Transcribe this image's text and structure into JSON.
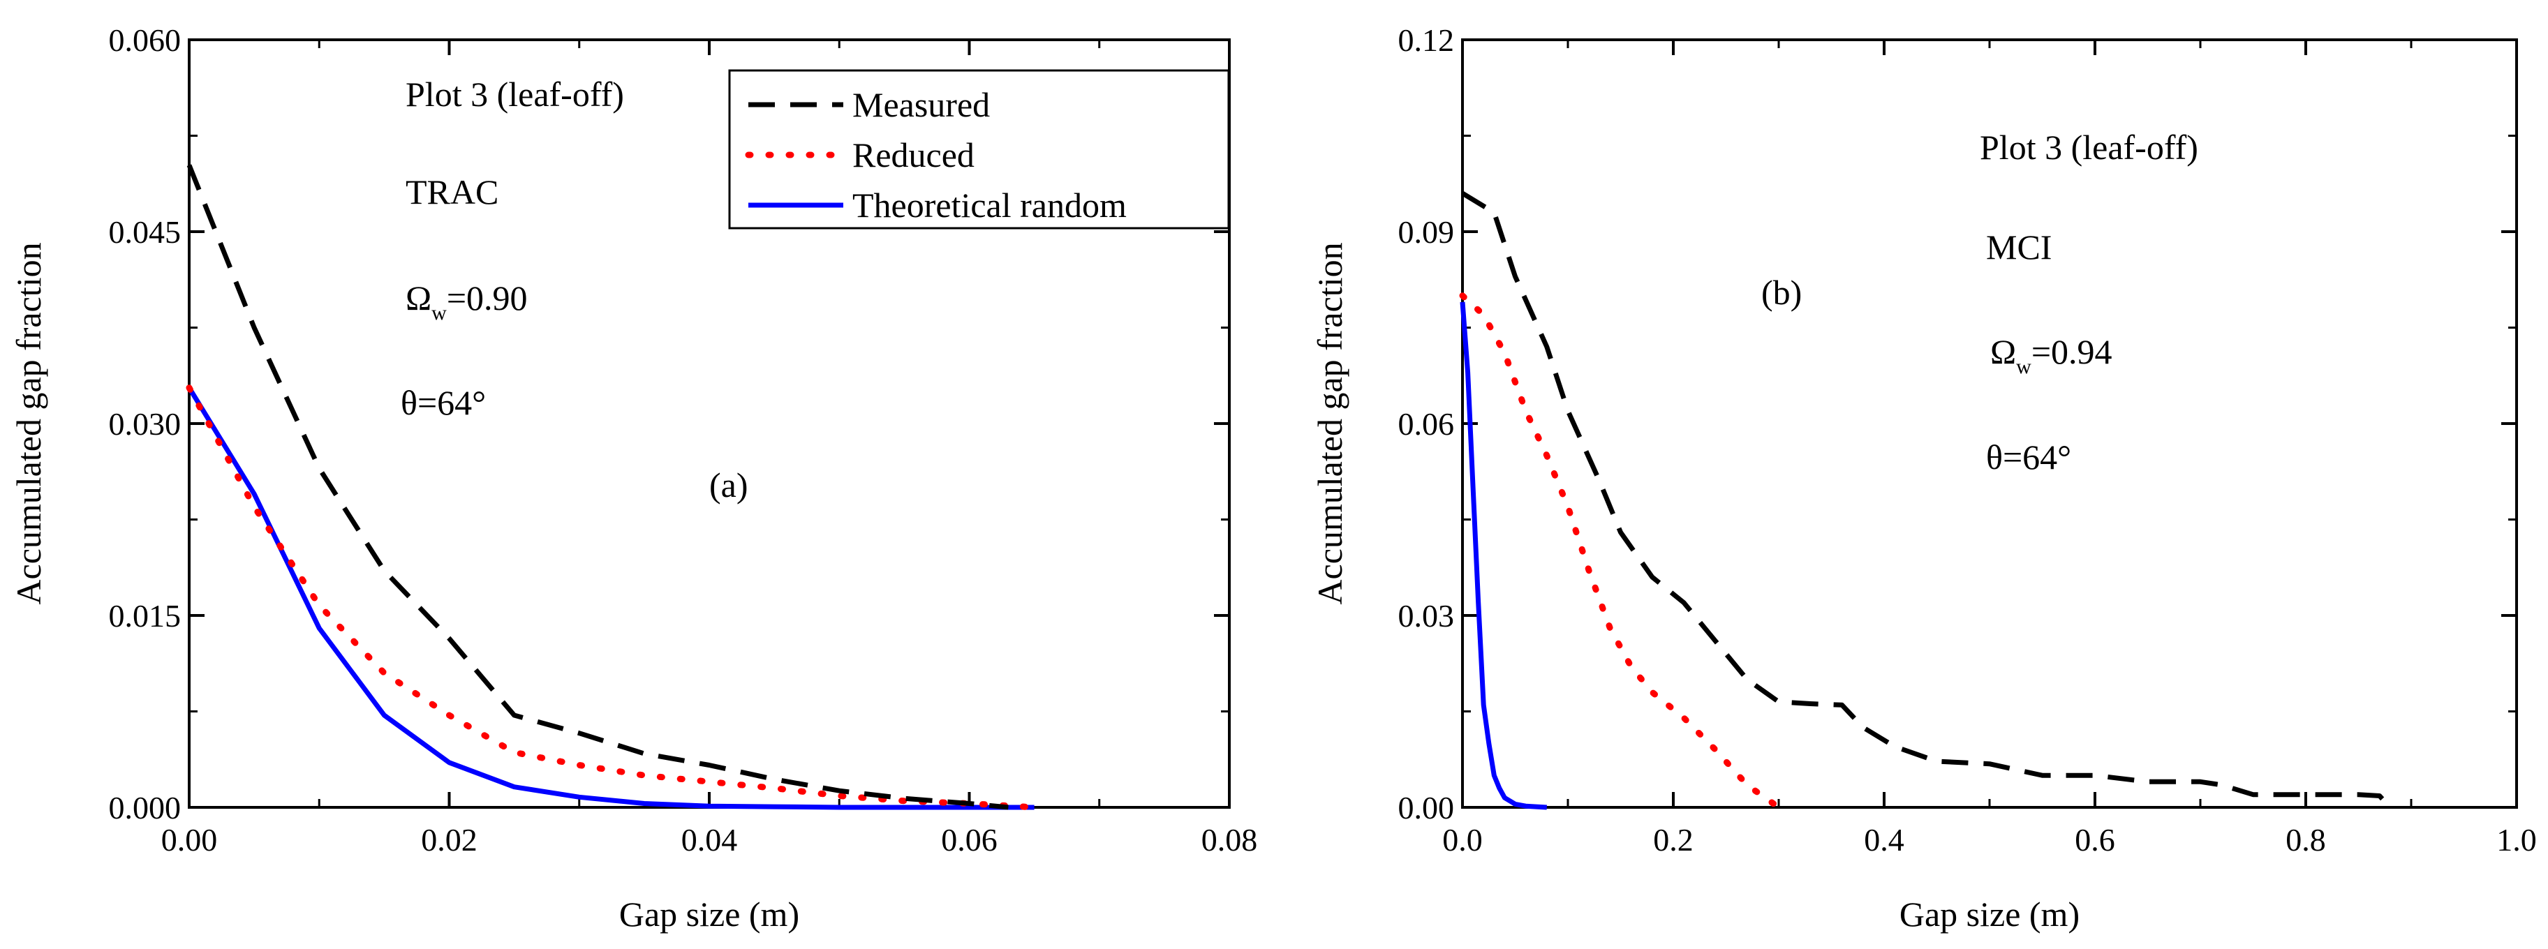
{
  "chart_data": [
    {
      "type": "line",
      "panel": "a",
      "xlabel": "Gap size (m)",
      "ylabel": "Accumulated gap fraction",
      "xlim": [
        0,
        0.08
      ],
      "ylim": [
        0,
        0.06
      ],
      "xticks": [
        "0.00",
        "0.02",
        "0.04",
        "0.06",
        "0.08"
      ],
      "yticks": [
        "0.000",
        "0.015",
        "0.030",
        "0.045",
        "0.060"
      ],
      "annotations": {
        "plot": "Plot 3 (leaf-off)",
        "method": "TRAC",
        "omega_symbol": "Ω",
        "omega_sub": "w",
        "omega_value": "=0.90",
        "theta": "θ=64°",
        "label": "(a)"
      },
      "legend": {
        "position": "top-right",
        "entries": [
          "Measured",
          "Reduced",
          "Theoretical random"
        ]
      },
      "series": [
        {
          "name": "Measured",
          "color": "#000000",
          "style": "dashed",
          "x": [
            0,
            0.005,
            0.01,
            0.015,
            0.02,
            0.025,
            0.03,
            0.035,
            0.04,
            0.045,
            0.05,
            0.055,
            0.06,
            0.063
          ],
          "y": [
            0.0502,
            0.0375,
            0.0265,
            0.0185,
            0.0132,
            0.0072,
            0.0058,
            0.0042,
            0.0033,
            0.0022,
            0.0013,
            0.0007,
            0.0003,
            0
          ]
        },
        {
          "name": "Reduced",
          "color": "#ff0000",
          "style": "dotted",
          "x": [
            0,
            0.005,
            0.01,
            0.015,
            0.02,
            0.025,
            0.03,
            0.035,
            0.04,
            0.045,
            0.05,
            0.055,
            0.06,
            0.065
          ],
          "y": [
            0.0328,
            0.0235,
            0.0158,
            0.0105,
            0.0072,
            0.0043,
            0.0033,
            0.0025,
            0.002,
            0.0015,
            0.0009,
            0.0005,
            0.0003,
            0
          ]
        },
        {
          "name": "Theoretical random",
          "color": "#0000ff",
          "style": "solid",
          "x": [
            0,
            0.005,
            0.01,
            0.015,
            0.02,
            0.025,
            0.03,
            0.035,
            0.04,
            0.045,
            0.05,
            0.055,
            0.06,
            0.065
          ],
          "y": [
            0.0328,
            0.0245,
            0.014,
            0.0072,
            0.0035,
            0.0016,
            0.0008,
            0.0003,
            0.0001,
            5e-05,
            0,
            0,
            0,
            0
          ]
        }
      ]
    },
    {
      "type": "line",
      "panel": "b",
      "xlabel": "Gap size (m)",
      "ylabel": "Accumulated gap fraction",
      "xlim": [
        0,
        1.0
      ],
      "ylim": [
        0,
        0.12
      ],
      "xticks": [
        "0.0",
        "0.2",
        "0.4",
        "0.6",
        "0.8",
        "1.0"
      ],
      "yticks": [
        "0.00",
        "0.03",
        "0.06",
        "0.09",
        "0.12"
      ],
      "annotations": {
        "plot": "Plot 3 (leaf-off)",
        "method": "MCI",
        "omega_symbol": "Ω",
        "omega_sub": "w",
        "omega_value": "=0.94",
        "theta": "θ=64°",
        "label": "(b)"
      },
      "series": [
        {
          "name": "Measured",
          "color": "#000000",
          "style": "dashed",
          "x": [
            0,
            0.03,
            0.05,
            0.08,
            0.1,
            0.13,
            0.15,
            0.18,
            0.21,
            0.24,
            0.27,
            0.3,
            0.33,
            0.36,
            0.38,
            0.41,
            0.45,
            0.5,
            0.55,
            0.6,
            0.65,
            0.7,
            0.72,
            0.75,
            0.8,
            0.85,
            0.87,
            0.88
          ],
          "y": [
            0.096,
            0.093,
            0.083,
            0.072,
            0.062,
            0.051,
            0.043,
            0.036,
            0.032,
            0.026,
            0.02,
            0.0165,
            0.0162,
            0.016,
            0.0125,
            0.0095,
            0.0072,
            0.0068,
            0.005,
            0.005,
            0.004,
            0.004,
            0.0035,
            0.002,
            0.002,
            0.002,
            0.0018,
            0
          ]
        },
        {
          "name": "Reduced",
          "color": "#ff0000",
          "style": "dotted",
          "x": [
            0,
            0.02,
            0.04,
            0.06,
            0.08,
            0.1,
            0.12,
            0.14,
            0.16,
            0.18,
            0.21,
            0.24,
            0.27,
            0.3
          ],
          "y": [
            0.08,
            0.077,
            0.071,
            0.062,
            0.055,
            0.047,
            0.037,
            0.028,
            0.022,
            0.018,
            0.014,
            0.009,
            0.0035,
            0
          ]
        },
        {
          "name": "Theoretical random",
          "color": "#0000ff",
          "style": "solid",
          "x": [
            0,
            0.005,
            0.01,
            0.015,
            0.02,
            0.025,
            0.03,
            0.035,
            0.04,
            0.05,
            0.06,
            0.07,
            0.08
          ],
          "y": [
            0.079,
            0.068,
            0.05,
            0.032,
            0.016,
            0.01,
            0.005,
            0.003,
            0.0015,
            0.0005,
            0.0002,
            0.0001,
            0
          ]
        }
      ]
    }
  ]
}
